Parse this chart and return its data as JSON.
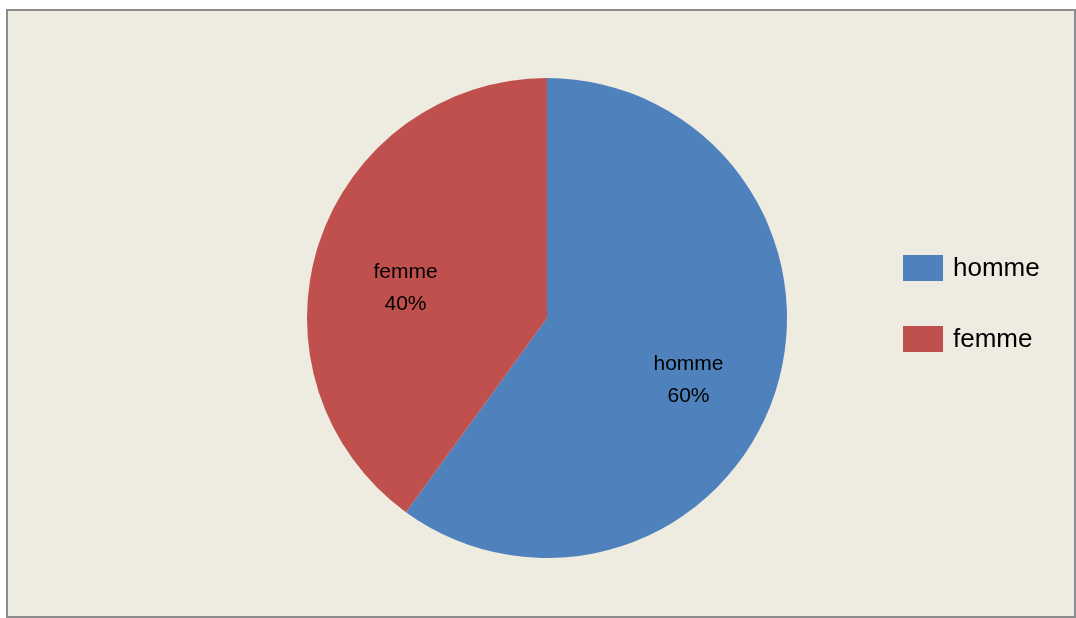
{
  "chart_data": {
    "type": "pie",
    "categories": [
      "homme",
      "femme"
    ],
    "values": [
      60,
      40
    ],
    "colors": [
      "#4f81bd",
      "#c0504d"
    ],
    "value_labels": [
      "60%",
      "40%"
    ],
    "legend": "right"
  }
}
